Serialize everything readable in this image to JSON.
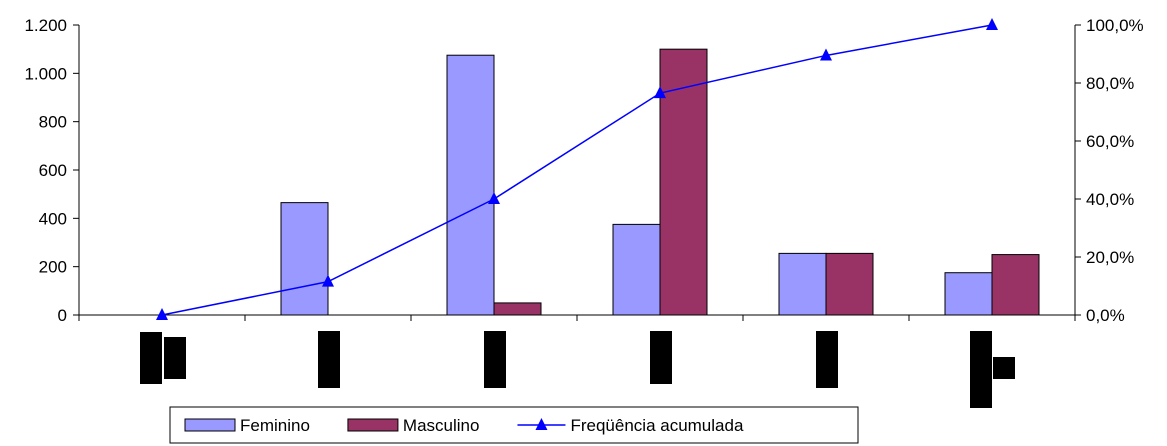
{
  "chart_data": {
    "type": "bar",
    "categories": [
      "",
      "",
      "",
      "",
      "",
      ""
    ],
    "series": [
      {
        "name": "Feminino",
        "type": "bar",
        "axis": "left",
        "color": "#9999ff",
        "values": [
          0,
          465,
          1075,
          375,
          255,
          175
        ]
      },
      {
        "name": "Masculino",
        "type": "bar",
        "axis": "left",
        "color": "#993366",
        "values": [
          0,
          0,
          50,
          1100,
          255,
          250
        ]
      },
      {
        "name": "Freqüência acumulada",
        "type": "line",
        "axis": "right",
        "color": "#0000ff",
        "marker": "triangle",
        "values": [
          0.0,
          11.5,
          40.0,
          76.5,
          89.5,
          100.0
        ]
      }
    ],
    "y_left": {
      "min": 0,
      "max": 1200,
      "ticks": [
        0,
        200,
        400,
        600,
        800,
        1000,
        1200
      ],
      "tick_labels": [
        "0",
        "200",
        "400",
        "600",
        "800",
        "1.000",
        "1.200"
      ]
    },
    "y_right": {
      "min": 0,
      "max": 100,
      "ticks": [
        0,
        20,
        40,
        60,
        80,
        100
      ],
      "tick_labels": [
        "0,0%",
        "20,0%",
        "40,0%",
        "60,0%",
        "80,0%",
        "100,0%"
      ]
    },
    "grid": false,
    "legend_position": "bottom",
    "title": "",
    "xlabel": "",
    "ylabel": ""
  }
}
